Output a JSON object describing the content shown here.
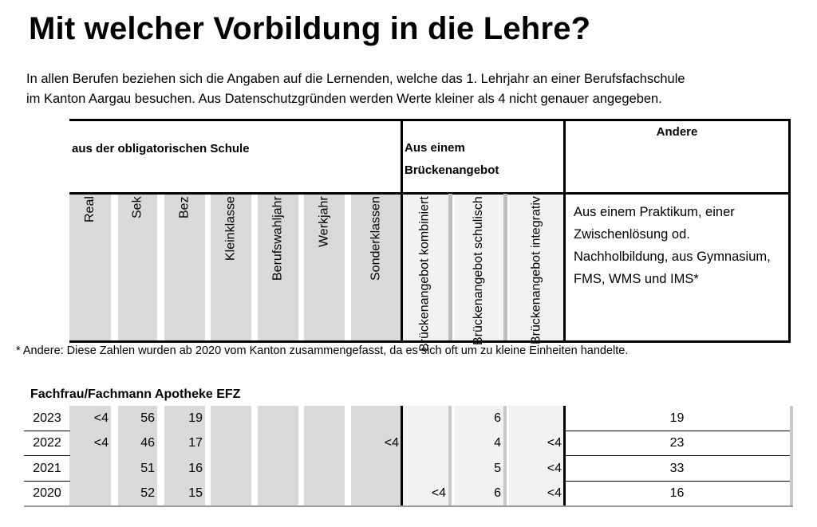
{
  "title": "Mit welcher Vorbildung in die Lehre?",
  "intro": [
    "In allen Berufen beziehen sich die Angaben auf die Lernenden, welche das 1. Lehrjahr an einer Berufsfachschule",
    "im Kanton Aargau besuchen. Aus Datenschutzgründen werden Werte kleiner als 4 nicht genauer angegeben."
  ],
  "header": {
    "group_obligatory": "aus der obligatorischen Schule",
    "group_bridge": "Aus einem Brückenangebot",
    "group_other": "Andere",
    "columns": [
      "Real",
      "Sek",
      "Bez",
      "Kleinklasse",
      "Berufswahljahr",
      "Werkjahr",
      "Sonderklassen",
      "Brückenangebot kombiniert",
      "Brückenangebot schulisch",
      "Brückenangebot integrativ"
    ],
    "other_desc": "Aus einem Praktikum, einer Zwischenlösung od. Nachholbildung, aus Gymnasium, FMS, WMS und IMS*"
  },
  "footnote": "* Andere: Diese Zahlen wurden ab 2020 vom Kanton zusammengefasst, da es sich oft um zu kleine Einheiten handelte.",
  "profession": "Fachfrau/Fachmann Apotheke EFZ",
  "rows": [
    {
      "year": "2023",
      "values": [
        "<4",
        "56",
        "19",
        "",
        "",
        "",
        "",
        "",
        "6",
        "",
        "19"
      ]
    },
    {
      "year": "2022",
      "values": [
        "<4",
        "46",
        "17",
        "",
        "",
        "",
        "<4",
        "",
        "4",
        "<4",
        "23"
      ]
    },
    {
      "year": "2021",
      "values": [
        "",
        "51",
        "16",
        "",
        "",
        "",
        "",
        "",
        "5",
        "<4",
        "33"
      ]
    },
    {
      "year": "2020",
      "values": [
        "",
        "52",
        "15",
        "",
        "",
        "",
        "",
        "<4",
        "6",
        "<4",
        "16"
      ]
    }
  ]
}
